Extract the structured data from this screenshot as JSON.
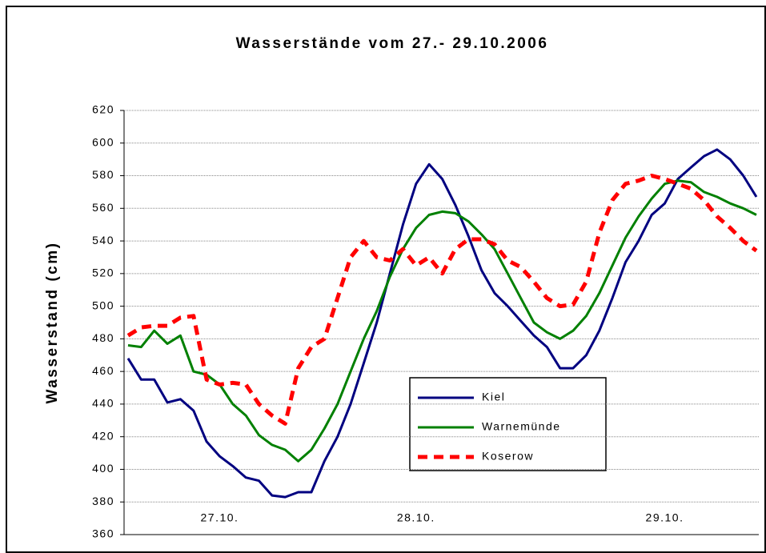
{
  "chart_data": {
    "type": "line",
    "title": "Wasserstände vom 27.- 29.10.2006",
    "y_label": "Wasserstand (cm)",
    "categories": [
      null,
      null,
      null,
      null,
      null,
      null,
      null,
      "27.10.",
      null,
      null,
      null,
      null,
      null,
      null,
      null,
      null,
      null,
      null,
      null,
      null,
      null,
      null,
      "28.10.",
      null,
      null,
      null,
      null,
      null,
      null,
      null,
      null,
      null,
      null,
      null,
      null,
      null,
      null,
      null,
      null,
      null,
      null,
      "29.10.",
      null,
      null,
      null,
      null,
      null,
      null,
      null
    ],
    "series": [
      {
        "name": "Kiel",
        "color": "#000080",
        "dash": false,
        "values": [
          468,
          455,
          455,
          441,
          443,
          436,
          417,
          408,
          402,
          395,
          393,
          384,
          383,
          386,
          386,
          405,
          420,
          440,
          465,
          490,
          520,
          550,
          575,
          587,
          578,
          562,
          543,
          522,
          508,
          500,
          491,
          482,
          475,
          462,
          462,
          470,
          485,
          505,
          527,
          540,
          556,
          563,
          578,
          585,
          592,
          596,
          590,
          580,
          567
        ]
      },
      {
        "name": "Warnemünde",
        "color": "#008000",
        "dash": false,
        "values": [
          476,
          475,
          485,
          477,
          482,
          460,
          458,
          452,
          440,
          433,
          421,
          415,
          412,
          405,
          412,
          425,
          440,
          460,
          480,
          497,
          518,
          535,
          548,
          556,
          558,
          557,
          552,
          544,
          535,
          520,
          505,
          490,
          484,
          480,
          485,
          494,
          508,
          525,
          542,
          555,
          566,
          575,
          577,
          576,
          570,
          567,
          563,
          560,
          556
        ]
      },
      {
        "name": "Koserow",
        "color": "#ff0000",
        "dash": true,
        "values": [
          482,
          487,
          488,
          488,
          493,
          494,
          455,
          452,
          453,
          452,
          440,
          433,
          428,
          462,
          475,
          480,
          505,
          530,
          540,
          530,
          528,
          535,
          525,
          530,
          520,
          535,
          541,
          541,
          538,
          528,
          524,
          515,
          505,
          500,
          501,
          515,
          545,
          565,
          575,
          577,
          580,
          578,
          575,
          572,
          565,
          555,
          548,
          540,
          534
        ]
      }
    ],
    "ylim": [
      360,
      620
    ],
    "yticks": [
      360,
      380,
      400,
      420,
      440,
      460,
      480,
      500,
      520,
      540,
      560,
      580,
      600,
      620
    ],
    "grid": true
  }
}
